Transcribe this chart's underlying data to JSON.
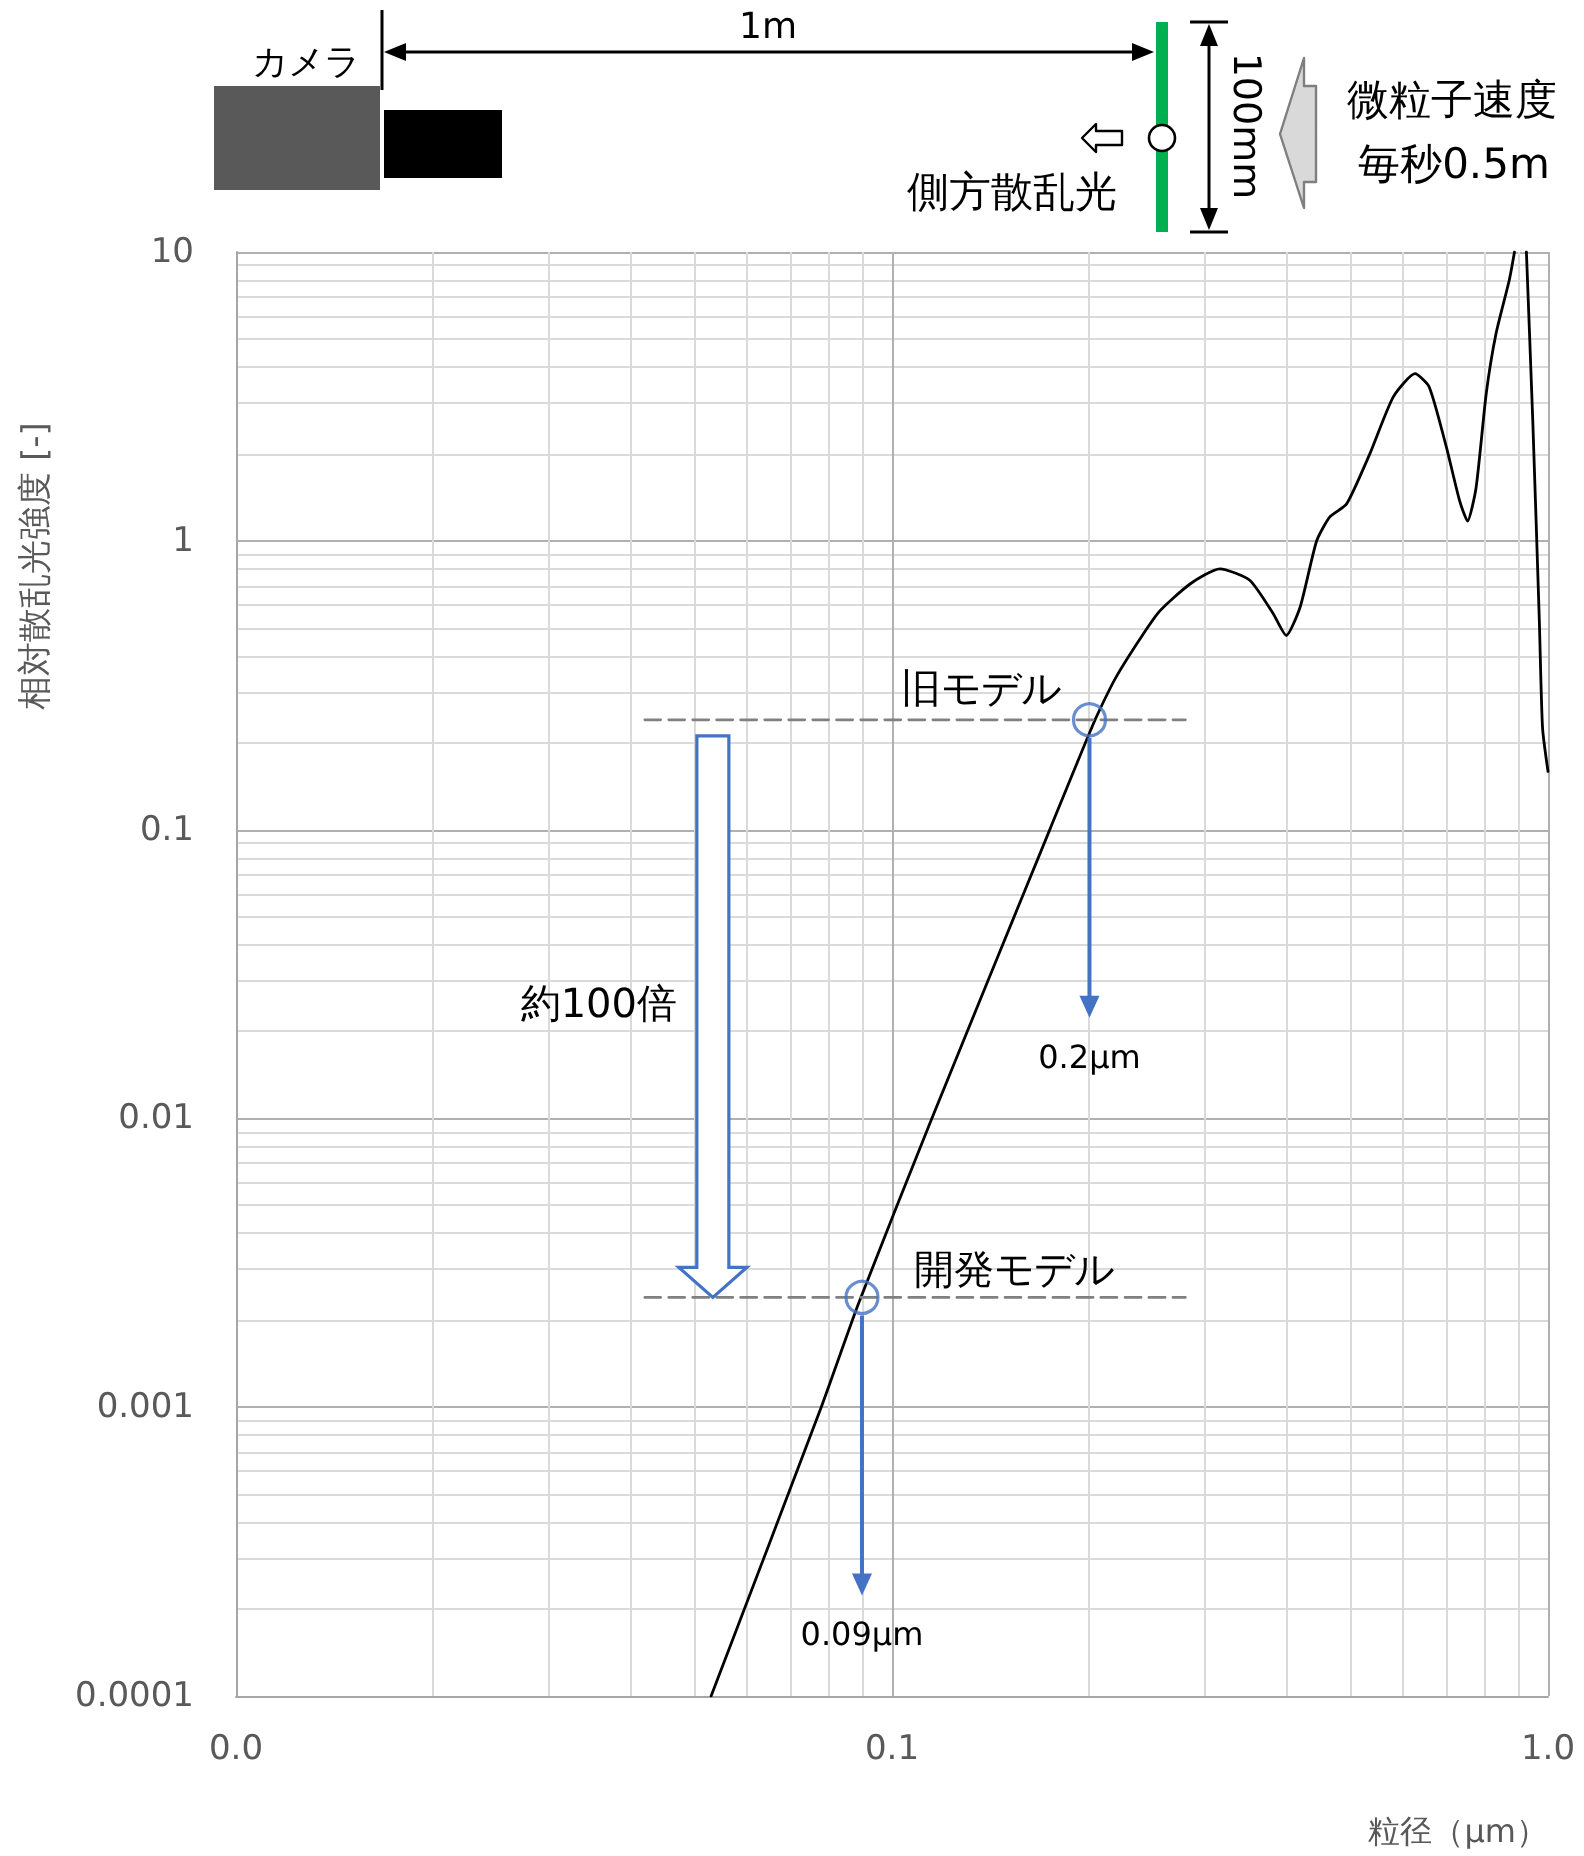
{
  "chart_data": {
    "type": "line",
    "xlabel": "粒径（μm）",
    "ylabel": "相対散乱光強度 [-]",
    "log": "xy",
    "xlim": [
      0.01,
      1
    ],
    "ylim": [
      0.0001,
      10
    ],
    "xticks": [
      {
        "value": 0.01,
        "label": "0.0"
      },
      0.1,
      {
        "value": 1,
        "label": "1.0"
      }
    ],
    "yticks": [
      0.0001,
      0.001,
      0.01,
      0.1,
      1,
      10
    ],
    "grid": true,
    "marker": "none",
    "series": [
      {
        "color": "#000000",
        "x": [
          0.053,
          0.078,
          0.089,
          0.115,
          0.174,
          0.204,
          0.22,
          0.254,
          0.285,
          0.316,
          0.351,
          0.381,
          0.399,
          0.419,
          0.444,
          0.465,
          0.493,
          0.535,
          0.581,
          0.627,
          0.659,
          0.7,
          0.733,
          0.754,
          0.777,
          0.805,
          0.833,
          0.873,
          0.889,
          0.91,
          0.927,
          0.948,
          0.97,
          0.981,
          1
        ],
        "values": [
          0.0001,
          0.001,
          0.0023,
          0.01,
          0.1,
          0.24,
          0.34,
          0.56,
          0.71,
          0.8,
          0.73,
          0.56,
          0.47,
          0.59,
          1,
          1.21,
          1.34,
          2,
          3.15,
          3.79,
          3.41,
          2.11,
          1.38,
          1.17,
          1.53,
          3.23,
          5.2,
          8,
          10,
          null,
          10,
          2.6,
          0.53,
          0.225,
          0.159
        ]
      },
      {
        "type": "line",
        "color": "#808080",
        "line_style": "dashed",
        "x": [
          0.042,
          0.28
        ],
        "values": [
          0.24,
          0.24
        ]
      },
      {
        "type": "line",
        "color": "#808080",
        "line_style": "dashed",
        "x": [
          0.042,
          0.28
        ],
        "values": [
          0.0024,
          0.0024
        ]
      },
      {
        "type": "scatter",
        "color": "#4472c4",
        "marker": "circle",
        "x": [
          0.2,
          0.09
        ],
        "values": [
          0.24,
          0.0024
        ]
      }
    ],
    "annotations": [
      "カメラ",
      "1m",
      "100mm",
      "側方散乱光",
      "微粒子速度",
      "毎秒0.5m",
      "旧モデル",
      "開発モデル",
      {
        "text": "0.2μm",
        "x": 0.2,
        "y": 0.24
      },
      {
        "text": "0.09μm",
        "x": 0.09,
        "y": 0.0024
      },
      "約100倍"
    ]
  }
}
